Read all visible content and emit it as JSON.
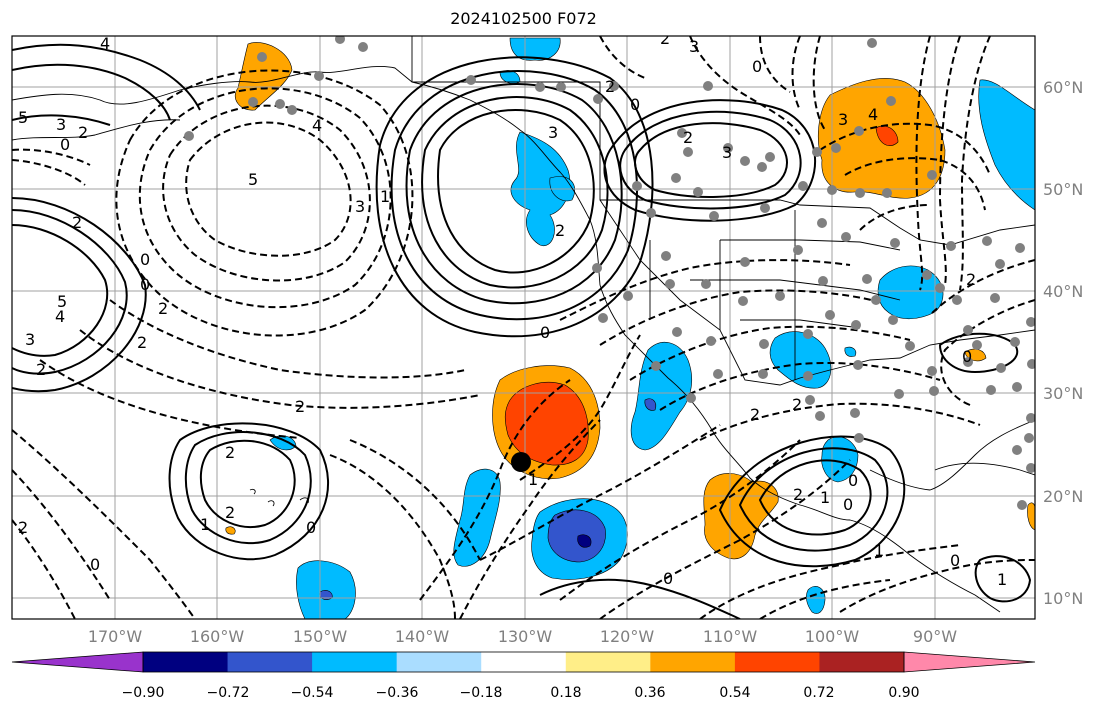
{
  "title": "2024102500 F072",
  "lon_labels": [
    "170°W",
    "160°W",
    "150°W",
    "140°W",
    "130°W",
    "120°W",
    "110°W",
    "100°W",
    "90°W"
  ],
  "lat_labels": [
    "60°N",
    "50°N",
    "40°N",
    "30°N",
    "20°N",
    "10°N"
  ],
  "colorbar": {
    "labels": [
      "−0.90",
      "−0.72",
      "−0.54",
      "−0.36",
      "−0.18",
      "0.18",
      "0.36",
      "0.54",
      "0.72",
      "0.90"
    ],
    "colors": [
      "#9933cc",
      "#000080",
      "#3355cc",
      "#00bbff",
      "#aaddff",
      "#ffffff",
      "#ffee88",
      "#ffa500",
      "#ff4400",
      "#aa2222",
      "#ff88aa"
    ]
  },
  "contour_labels": [
    "4",
    "3",
    "2",
    "5",
    "3",
    "2",
    "0",
    "4",
    "5",
    "3",
    "2",
    "0",
    "5",
    "4",
    "3",
    "2",
    "0",
    "2",
    "2",
    "0",
    "2",
    "3",
    "2",
    "4",
    "3",
    "0",
    "3",
    "2",
    "1",
    "0",
    "2",
    "0",
    "2",
    "0",
    "1",
    "2",
    "2",
    "0",
    "2",
    "1",
    "2",
    "0",
    "1",
    "0",
    "1",
    "0",
    "2",
    "0",
    "2",
    "1"
  ]
}
